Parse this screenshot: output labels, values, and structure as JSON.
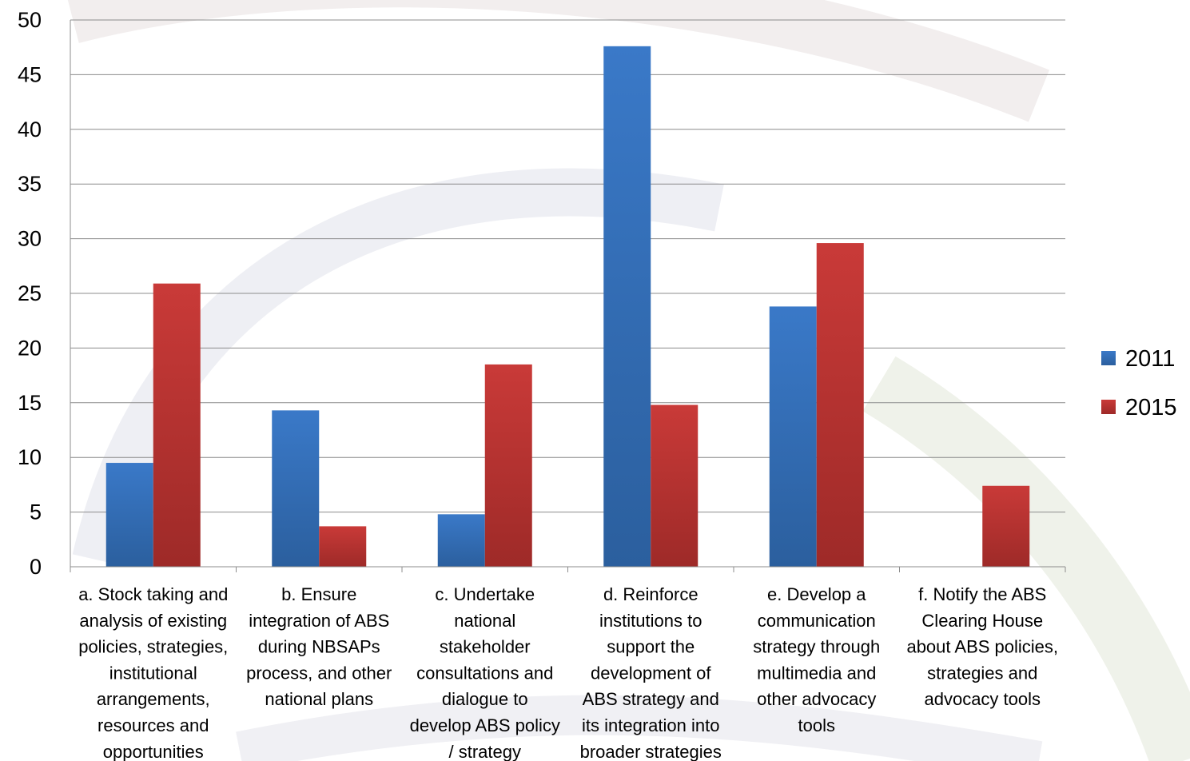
{
  "chart_data": {
    "type": "bar",
    "categories": [
      [
        "a. Stock taking and",
        "analysis of existing",
        "policies, strategies,",
        "institutional",
        "arrangements,",
        "resources and",
        "opportunities"
      ],
      [
        "b. Ensure",
        "integration of ABS",
        "during NBSAPs",
        "process, and other",
        "national plans"
      ],
      [
        "c. Undertake",
        "national",
        "stakeholder",
        "consultations and",
        "dialogue to",
        "develop ABS policy",
        "/ strategy"
      ],
      [
        "d. Reinforce",
        "institutions to",
        "support the",
        "development of",
        "ABS strategy and",
        "its integration into",
        "broader strategies"
      ],
      [
        "e. Develop a",
        "communication",
        "strategy through",
        "multimedia and",
        "other advocacy",
        "tools"
      ],
      [
        "f. Notify the ABS",
        "Clearing House",
        "about ABS policies,",
        "strategies and",
        "advocacy tools"
      ]
    ],
    "series": [
      {
        "name": "2011",
        "color": "#3a79c8",
        "values": [
          9.5,
          14.3,
          4.8,
          47.6,
          23.8,
          0
        ]
      },
      {
        "name": "2015",
        "color": "#c93a38",
        "values": [
          25.9,
          3.7,
          18.5,
          14.8,
          29.6,
          7.4
        ]
      }
    ],
    "ylim": [
      0,
      50
    ],
    "yticks": [
      0,
      5,
      10,
      15,
      20,
      25,
      30,
      35,
      40,
      45,
      50
    ],
    "grid": true,
    "legend": "right",
    "title": "",
    "xlabel": "",
    "ylabel": ""
  }
}
